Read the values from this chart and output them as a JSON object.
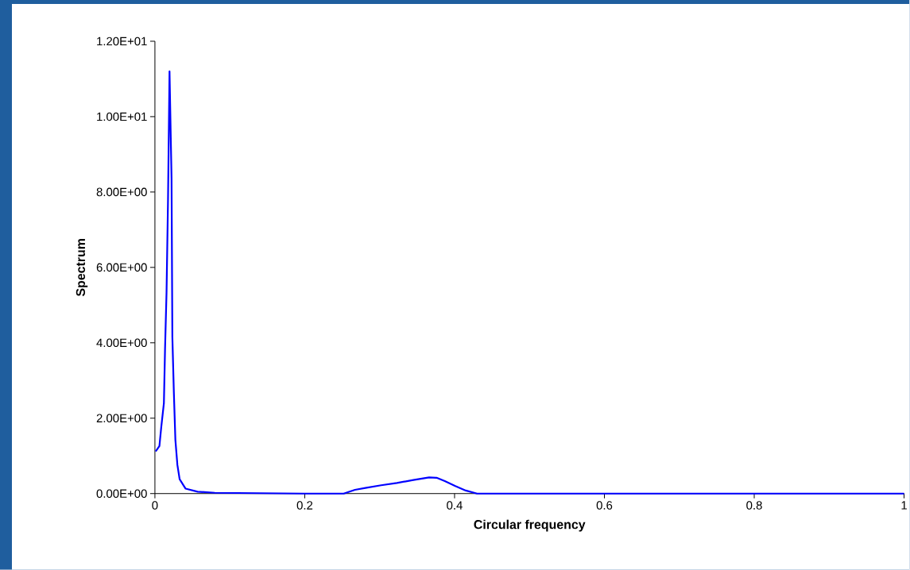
{
  "chart_data": {
    "type": "line",
    "xlabel": "Circular frequency",
    "ylabel": "Spectrum",
    "series": [
      {
        "color": "#0000ff",
        "x": [
          0.001,
          0.006,
          0.0085,
          0.012,
          0.0135,
          0.0155,
          0.0175,
          0.0195,
          0.0222,
          0.0233,
          0.0253,
          0.0273,
          0.03,
          0.033,
          0.041,
          0.057,
          0.08,
          0.2,
          0.252,
          0.267,
          0.281,
          0.302,
          0.323,
          0.345,
          0.366,
          0.376,
          0.387,
          0.401,
          0.415,
          0.43,
          0.6,
          1.0
        ],
        "values": [
          1.12,
          1.26,
          1.77,
          2.4,
          3.83,
          5.33,
          7.8,
          11.2,
          8.35,
          4.15,
          2.68,
          1.43,
          0.76,
          0.38,
          0.13,
          0.05,
          0.02,
          0.0,
          0.0,
          0.1,
          0.15,
          0.22,
          0.28,
          0.36,
          0.43,
          0.42,
          0.33,
          0.2,
          0.08,
          0.0,
          0.0,
          0.0
        ]
      }
    ],
    "xlim": [
      0,
      1
    ],
    "xticks": [
      0,
      0.2,
      0.4,
      0.6,
      0.8,
      1
    ],
    "ylim": [
      0,
      12
    ],
    "yticks": [
      {
        "value": 0,
        "label": "0.00E+00"
      },
      {
        "value": 2,
        "label": "2.00E+00"
      },
      {
        "value": 4,
        "label": "4.00E+00"
      },
      {
        "value": 6,
        "label": "6.00E+00"
      },
      {
        "value": 8,
        "label": "8.00E+00"
      },
      {
        "value": 10,
        "label": "1.00E+01"
      },
      {
        "value": 12,
        "label": "1.20E+01"
      }
    ],
    "marker": "none",
    "line_style": "solid"
  }
}
